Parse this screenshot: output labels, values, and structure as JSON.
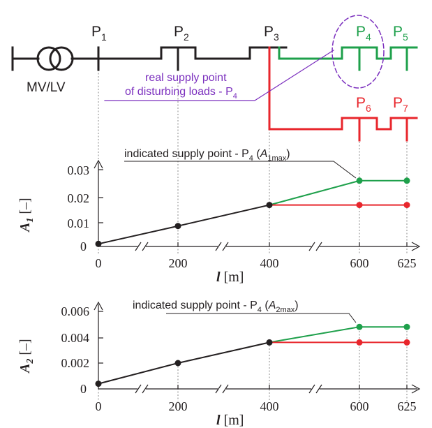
{
  "colors": {
    "black": "#231f20",
    "green": "#1ea04b",
    "red": "#e8262c",
    "purple": "#7b2fbe",
    "grid": "#8a8a8a"
  },
  "network": {
    "transformer_label": "MV/LV",
    "points": [
      {
        "main": "P",
        "sub": "1"
      },
      {
        "main": "P",
        "sub": "2"
      },
      {
        "main": "P",
        "sub": "3"
      },
      {
        "main": "P",
        "sub": "4"
      },
      {
        "main": "P",
        "sub": "5"
      },
      {
        "main": "P",
        "sub": "6"
      },
      {
        "main": "P",
        "sub": "7"
      }
    ],
    "annotation_line1": "real supply point",
    "annotation_line2_main": "of disturbing loads - P",
    "annotation_line2_sub": "4"
  },
  "chart_data": [
    {
      "type": "line",
      "ylabel_main": "A",
      "ylabel_sub": "1",
      "ylabel_unit": " [–]",
      "xlabel_main": "l",
      "xlabel_unit": " [m]",
      "x_ticks": [
        "0",
        "200",
        "400",
        "600",
        "625"
      ],
      "y_ticks": [
        "0",
        "0.01",
        "0.02",
        "0.03"
      ],
      "ylim": [
        0,
        0.03
      ],
      "note_main": "indicated supply point - P",
      "note_sub": "4",
      "note_paren_open": " (",
      "note_var": "A",
      "note_var_sub": "1max",
      "note_paren_close": ")",
      "series": [
        {
          "color": "black",
          "x": [
            0,
            200,
            400
          ],
          "y": [
            0.001,
            0.008,
            0.0162
          ]
        },
        {
          "color": "green",
          "x": [
            400,
            600,
            625
          ],
          "y": [
            0.0162,
            0.0257,
            0.0257
          ]
        },
        {
          "color": "red",
          "x": [
            400,
            600,
            625
          ],
          "y": [
            0.0162,
            0.0162,
            0.0162
          ]
        }
      ]
    },
    {
      "type": "line",
      "ylabel_main": "A",
      "ylabel_sub": "2",
      "ylabel_unit": " [–]",
      "xlabel_main": "l",
      "xlabel_unit": " [m]",
      "x_ticks": [
        "0",
        "200",
        "400",
        "600",
        "625"
      ],
      "y_ticks": [
        "0",
        "0.002",
        "0.004",
        "0.006"
      ],
      "ylim": [
        0,
        0.006
      ],
      "note_main": "indicated supply point - P",
      "note_sub": "4",
      "note_paren_open": " (",
      "note_var": "A",
      "note_var_sub": "2max",
      "note_paren_close": ")",
      "series": [
        {
          "color": "black",
          "x": [
            0,
            200,
            400
          ],
          "y": [
            0.0004,
            0.002,
            0.0036
          ]
        },
        {
          "color": "green",
          "x": [
            400,
            600,
            625
          ],
          "y": [
            0.0036,
            0.0048,
            0.0048
          ]
        },
        {
          "color": "red",
          "x": [
            400,
            600,
            625
          ],
          "y": [
            0.0036,
            0.0036,
            0.0036
          ]
        }
      ]
    }
  ]
}
